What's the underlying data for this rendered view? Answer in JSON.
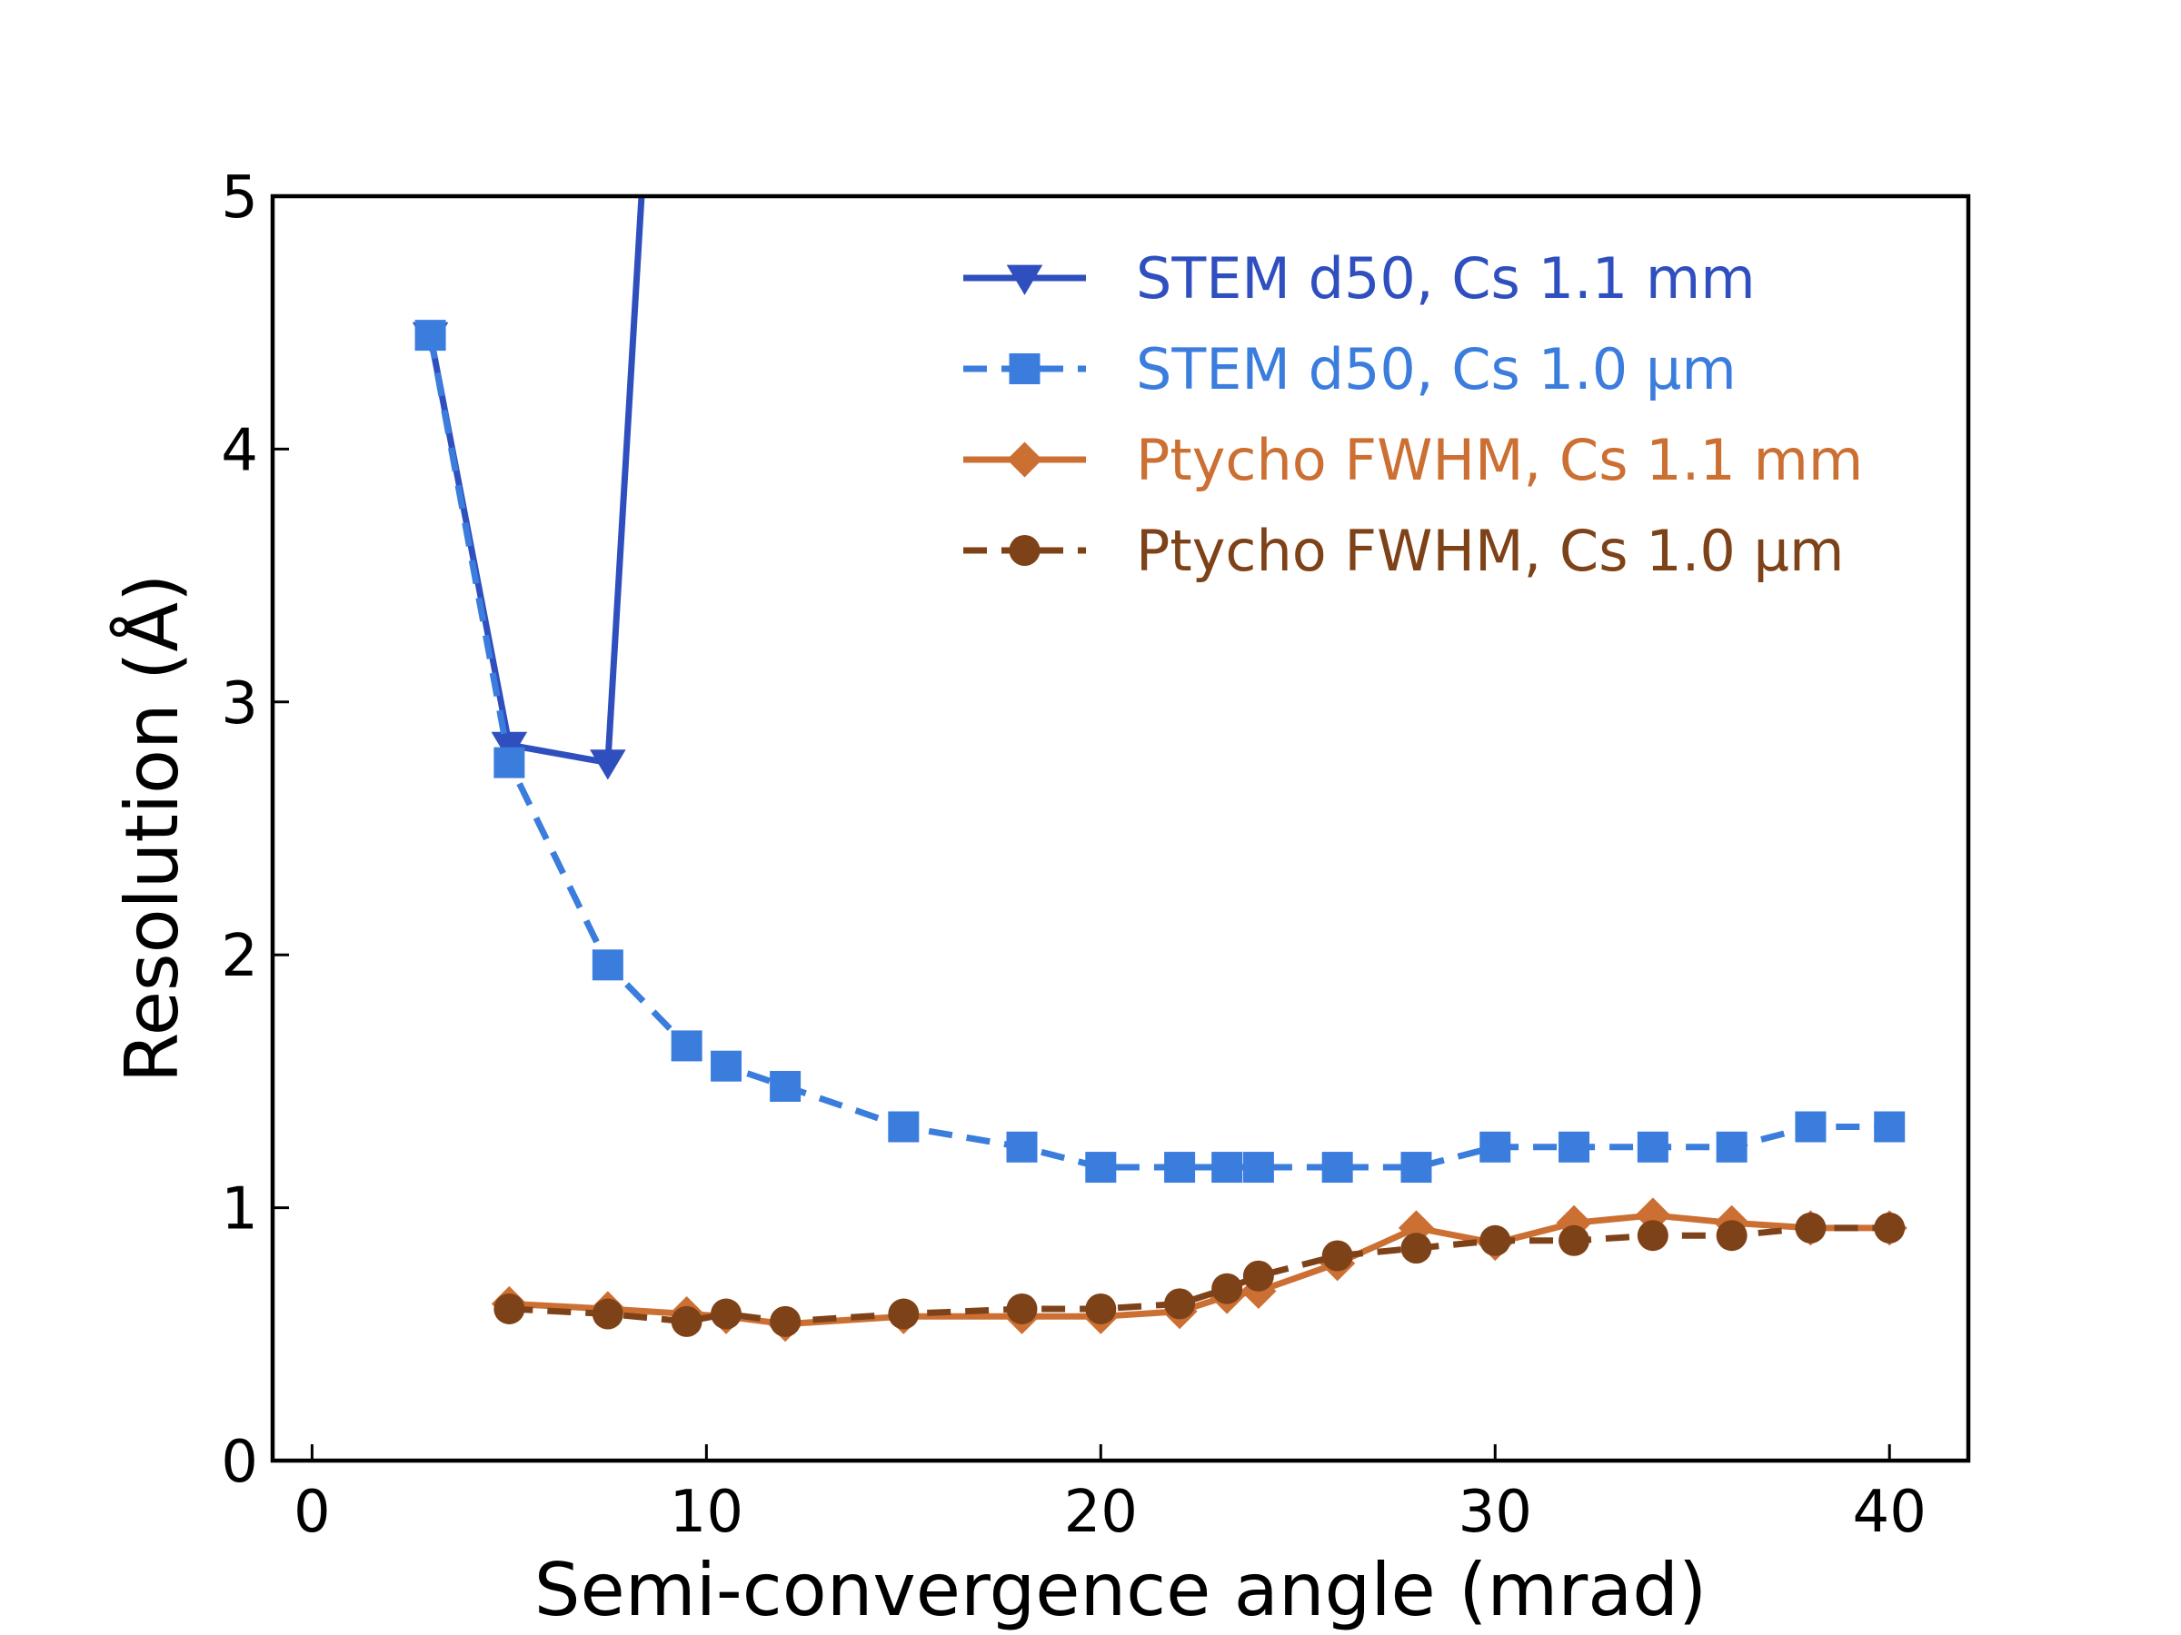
{
  "chart_data": {
    "type": "line",
    "xlabel": "Semi-convergence angle (mrad)",
    "ylabel": "Resolution (Å)",
    "xlim": [
      -1,
      42
    ],
    "ylim": [
      0,
      5
    ],
    "xticks": [
      0,
      10,
      20,
      30,
      40
    ],
    "yticks": [
      0,
      1,
      2,
      3,
      4,
      5
    ],
    "grid": false,
    "legend": {
      "position": "top-right"
    },
    "series": [
      {
        "name": "STEM d50, Cs 1.1 mm",
        "color": "#2f4fbe",
        "line_style": "solid",
        "marker": "triangle-down",
        "x": [
          3,
          5,
          7.5,
          9.5
        ],
        "y": [
          4.45,
          2.83,
          2.76,
          8.0
        ]
      },
      {
        "name": "STEM d50, Cs 1.0 µm",
        "color": "#3b7ddd",
        "line_style": "dashed",
        "marker": "square",
        "x": [
          3,
          5,
          7.5,
          9.5,
          10.5,
          12,
          15,
          18,
          20,
          22,
          23.2,
          24,
          26,
          28,
          30,
          32,
          34,
          36,
          38,
          40
        ],
        "y": [
          4.45,
          2.76,
          1.96,
          1.64,
          1.56,
          1.48,
          1.32,
          1.24,
          1.16,
          1.16,
          1.16,
          1.16,
          1.16,
          1.16,
          1.24,
          1.24,
          1.24,
          1.24,
          1.32,
          1.32
        ]
      },
      {
        "name": "Ptycho FWHM, Cs 1.1 mm",
        "color": "#cc6f33",
        "line_style": "solid",
        "marker": "diamond",
        "x": [
          5,
          7.5,
          9.5,
          10.5,
          12,
          15,
          18,
          20,
          22,
          23.2,
          24,
          26,
          28,
          30,
          32,
          34,
          36,
          38,
          40
        ],
        "y": [
          0.62,
          0.6,
          0.58,
          0.57,
          0.54,
          0.57,
          0.57,
          0.57,
          0.59,
          0.65,
          0.67,
          0.78,
          0.92,
          0.86,
          0.94,
          0.97,
          0.94,
          0.92,
          0.92
        ]
      },
      {
        "name": "Ptycho FWHM, Cs 1.0 µm",
        "color": "#7e4219",
        "line_style": "dashed",
        "marker": "circle",
        "x": [
          5,
          7.5,
          9.5,
          10.5,
          12,
          15,
          18,
          20,
          22,
          23.2,
          24,
          26,
          28,
          30,
          32,
          34,
          36,
          38,
          40
        ],
        "y": [
          0.6,
          0.58,
          0.55,
          0.58,
          0.55,
          0.58,
          0.6,
          0.6,
          0.62,
          0.68,
          0.73,
          0.81,
          0.84,
          0.87,
          0.87,
          0.89,
          0.89,
          0.92,
          0.92
        ]
      }
    ]
  }
}
